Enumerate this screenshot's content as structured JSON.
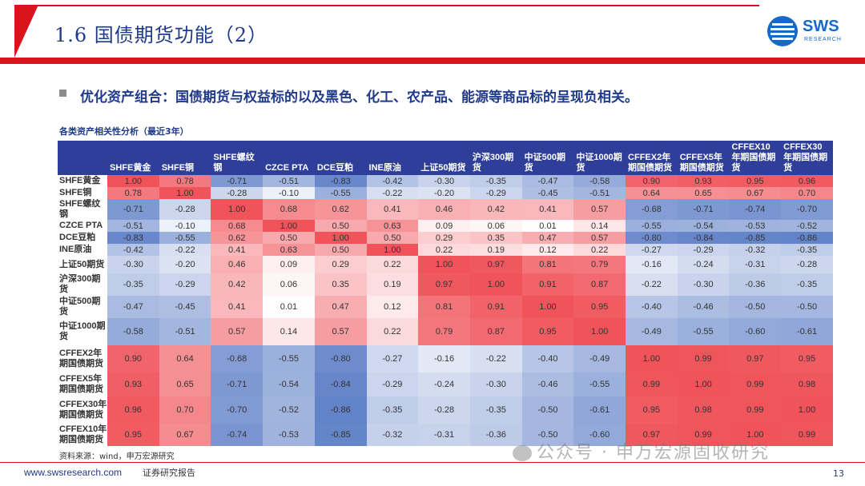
{
  "header": {
    "title": "1.6 国债期货功能（2）",
    "logo_text": "SWS",
    "logo_sub": "RESEARCH"
  },
  "bullet": "优化资产组合：国债期货与权益标的以及黑色、化工、农产品、能源等商品标的呈现负相关。",
  "table_title": "各类资产相关性分析（最近3年）",
  "chart_data": {
    "type": "heatmap",
    "title": "各类资产相关性分析（最近3年）",
    "columns": [
      "SHFE黄金",
      "SHFE铜",
      "SHFE螺纹钢",
      "CZCE PTA",
      "DCE豆粕",
      "INE原油",
      "上证50期货",
      "沪深300期货",
      "中证500期货",
      "中证1000期货",
      "CFFEX2年期国债期货",
      "CFFEX5年期国债期货",
      "CFFEX10年期国债期货",
      "CFFEX30年期国债期货"
    ],
    "rows": [
      "SHFE黄金",
      "SHFE铜",
      "SHFE螺纹钢",
      "CZCE PTA",
      "DCE豆粕",
      "INE原油",
      "上证50期货",
      "沪深300期货",
      "中证500期货",
      "中证1000期货",
      "CFFEX2年期国债期货",
      "CFFEX5年期国债期货",
      "CFFEX30年期国债期货",
      "CFFEX10年期国债期货"
    ],
    "values": [
      [
        "1.00",
        "0.78",
        "-0.71",
        "-0.51",
        "-0.83",
        "-0.42",
        "-0.30",
        "-0.35",
        "-0.47",
        "-0.58",
        "0.90",
        "0.93",
        "0.95",
        "0.96"
      ],
      [
        "0.78",
        "1.00",
        "-0.28",
        "-0.10",
        "-0.55",
        "-0.22",
        "-0.20",
        "-0.29",
        "-0.45",
        "-0.51",
        "0.64",
        "0.65",
        "0.67",
        "0.70"
      ],
      [
        "-0.71",
        "-0.28",
        "1.00",
        "0.68",
        "0.62",
        "0.41",
        "0.46",
        "0.42",
        "0.41",
        "0.57",
        "-0.68",
        "-0.71",
        "-0.74",
        "-0.70"
      ],
      [
        "-0.51",
        "-0.10",
        "0.68",
        "1.00",
        "0.50",
        "0.63",
        "0.09",
        "0.06",
        "0.01",
        "0.14",
        "-0.55",
        "-0.54",
        "-0.53",
        "-0.52"
      ],
      [
        "-0.83",
        "-0.55",
        "0.62",
        "0.50",
        "1.00",
        "0.50",
        "0.29",
        "0.35",
        "0.47",
        "0.57",
        "-0.80",
        "-0.84",
        "-0.85",
        "-0.86"
      ],
      [
        "-0.42",
        "-0.22",
        "0.41",
        "0.63",
        "0.50",
        "1.00",
        "0.22",
        "0.19",
        "0.12",
        "0.22",
        "-0.27",
        "-0.29",
        "-0.32",
        "-0.35"
      ],
      [
        "-0.30",
        "-0.20",
        "0.46",
        "0.09",
        "0.29",
        "0.22",
        "1.00",
        "0.97",
        "0.81",
        "0.79",
        "-0.16",
        "-0.24",
        "-0.31",
        "-0.28"
      ],
      [
        "-0.35",
        "-0.29",
        "0.42",
        "0.06",
        "0.35",
        "0.19",
        "0.97",
        "1.00",
        "0.91",
        "0.87",
        "-0.22",
        "-0.30",
        "-0.36",
        "-0.35"
      ],
      [
        "-0.47",
        "-0.45",
        "0.41",
        "0.01",
        "0.47",
        "0.12",
        "0.81",
        "0.91",
        "1.00",
        "0.95",
        "-0.40",
        "-0.46",
        "-0.50",
        "-0.50"
      ],
      [
        "-0.58",
        "-0.51",
        "0.57",
        "0.14",
        "0.57",
        "0.22",
        "0.79",
        "0.87",
        "0.95",
        "1.00",
        "-0.49",
        "-0.55",
        "-0.60",
        "-0.61"
      ],
      [
        "0.90",
        "0.64",
        "-0.68",
        "-0.55",
        "-0.80",
        "-0.27",
        "-0.16",
        "-0.22",
        "-0.40",
        "-0.49",
        "1.00",
        "0.99",
        "0.97",
        "0.95"
      ],
      [
        "0.93",
        "0.65",
        "-0.71",
        "-0.54",
        "-0.84",
        "-0.29",
        "-0.24",
        "-0.30",
        "-0.46",
        "-0.55",
        "0.99",
        "1.00",
        "0.99",
        "0.98"
      ],
      [
        "0.96",
        "0.70",
        "-0.70",
        "-0.52",
        "-0.86",
        "-0.35",
        "-0.28",
        "-0.35",
        "-0.50",
        "-0.61",
        "0.95",
        "0.98",
        "0.99",
        "1.00"
      ],
      [
        "0.95",
        "0.67",
        "-0.74",
        "-0.53",
        "-0.85",
        "-0.32",
        "-0.31",
        "-0.36",
        "-0.50",
        "-0.60",
        "0.97",
        "0.99",
        "1.00",
        "0.99"
      ]
    ],
    "colors": {
      "positive": "#f0535a",
      "negative": "#4a6fc0",
      "neutral": "#ffffff"
    }
  },
  "source": "资料来源：wind，申万宏源研究",
  "footer": {
    "url": "www.swsresearch.com",
    "label": "证券研究报告",
    "page": "13"
  },
  "watermark": "公众号 · 申万宏源固收研究"
}
